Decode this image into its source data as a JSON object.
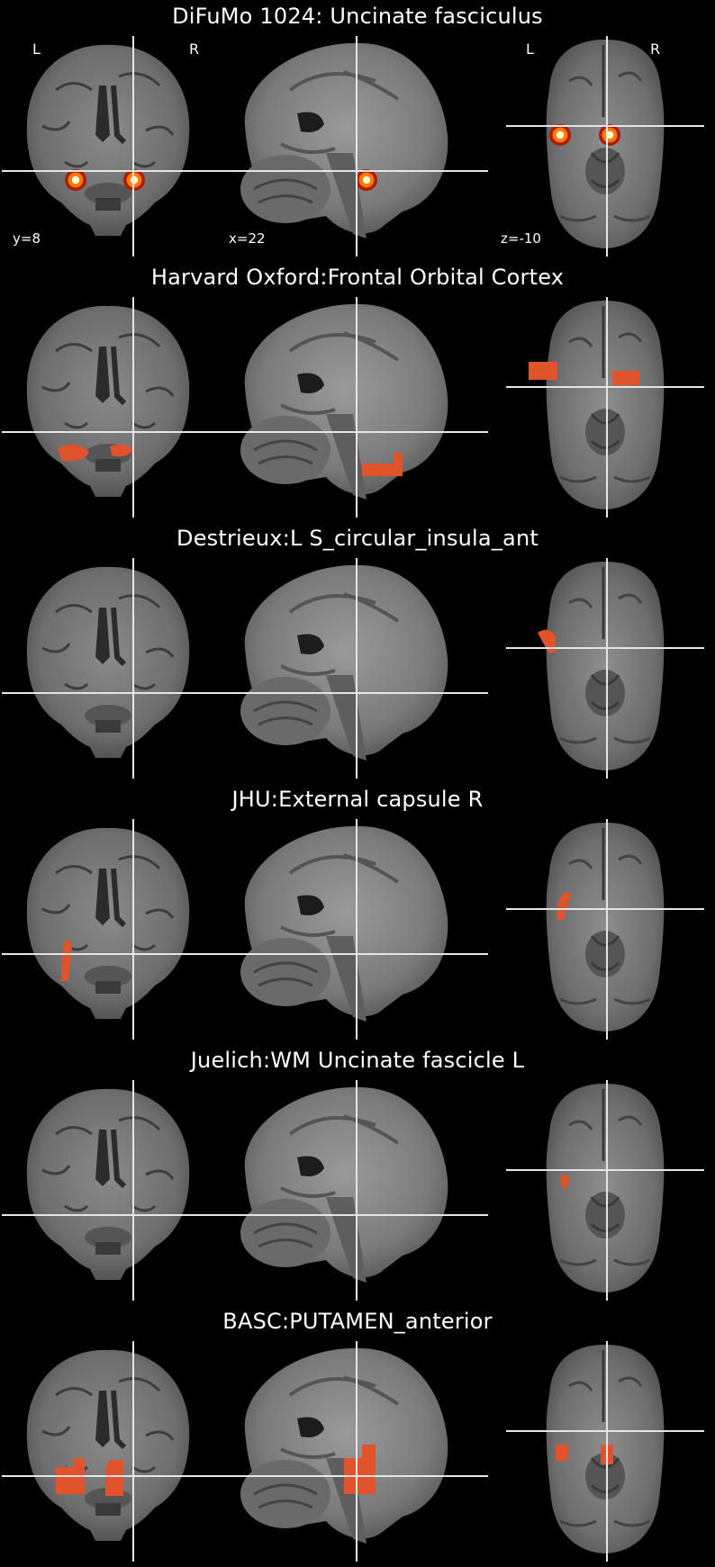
{
  "rows": [
    {
      "title": "DiFuMo 1024: Uncinate fasciculus",
      "orientation": {
        "left": "L",
        "right": "R"
      },
      "coords": {
        "coronal": "y=8",
        "sagittal": "x=22",
        "axial": "z=-10"
      },
      "overlay": "heat"
    },
    {
      "title": "Harvard Oxford:Frontal Orbital Cortex",
      "overlay": "orbital"
    },
    {
      "title": "Destrieux:L S_circular_insula_ant",
      "overlay": "insula"
    },
    {
      "title": "JHU:External capsule R",
      "overlay": "capsule"
    },
    {
      "title": "Juelich:WM Uncinate fascicle L",
      "overlay": "uncinate"
    },
    {
      "title": "BASC:PUTAMEN_anterior",
      "overlay": "putamen"
    }
  ],
  "colors": {
    "background": "#000000",
    "crosshair": "#e6e6e6",
    "overlay": "#e0532b",
    "heat_outer": "#b01a06",
    "heat_mid": "#ff7a00",
    "heat_core": "#ffffd0"
  }
}
